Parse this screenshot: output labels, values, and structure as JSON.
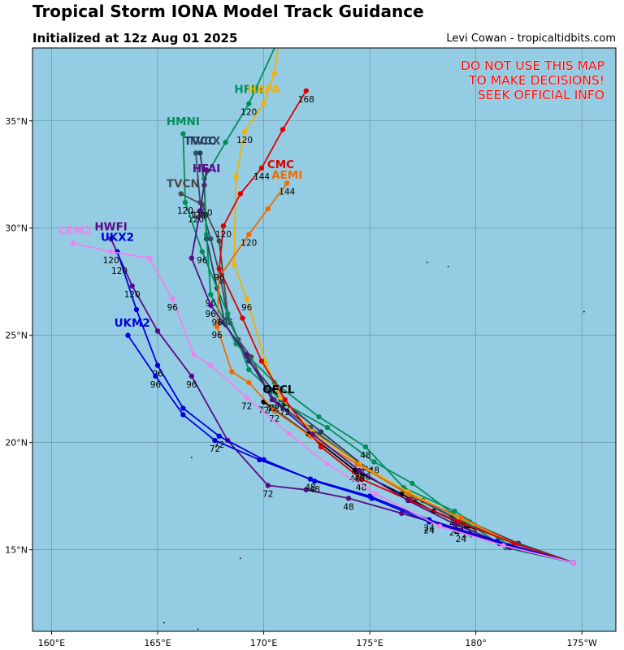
{
  "header": {
    "title": "Tropical Storm IONA Model Track Guidance",
    "subtitle": "Initialized at 12z Aug 01 2025",
    "credit": "Levi Cowan - tropicaltidbits.com"
  },
  "warning": [
    "DO NOT USE THIS MAP",
    "TO MAKE DECISIONS!",
    "SEEK OFFICIAL INFO"
  ],
  "axes": {
    "lon_ticks": [
      {
        "lon": 160,
        "label": "160°E"
      },
      {
        "lon": 165,
        "label": "165°E"
      },
      {
        "lon": 170,
        "label": "170°E"
      },
      {
        "lon": 175,
        "label": "175°E"
      },
      {
        "lon": 180,
        "label": "180°"
      },
      {
        "lon": 185,
        "label": "175°W"
      }
    ],
    "lat_ticks": [
      {
        "lat": 15,
        "label": "15°N"
      },
      {
        "lat": 20,
        "label": "20°N"
      },
      {
        "lat": 25,
        "label": "25°N"
      },
      {
        "lat": 30,
        "label": "30°N"
      },
      {
        "lat": 35,
        "label": "35°N"
      }
    ],
    "lon_range": [
      159.1,
      186.6
    ],
    "lat_range": [
      11.2,
      38.4
    ]
  },
  "colors": {
    "ocean": "#94cde3",
    "grid": "#4f6f7a",
    "warning": "#ff0000"
  },
  "tracks": [
    {
      "name": "OFCL",
      "color": "#000000",
      "label": "OFCL",
      "label_at": [
        170.7,
        22.3
      ],
      "points": [
        [
          184.6,
          14.4
        ],
        [
          182,
          15.3
        ],
        [
          179.6,
          16.1
        ],
        [
          178,
          16.8
        ],
        [
          176.5,
          17.6
        ],
        [
          174.3,
          18.7
        ],
        [
          172.1,
          20.4
        ],
        [
          170,
          21.9
        ]
      ],
      "tau_labels": [
        [
          "24",
          179.6,
          16.1
        ],
        [
          "48",
          174.3,
          18.7
        ],
        [
          "72",
          170,
          21.9
        ]
      ]
    },
    {
      "name": "TVCN",
      "color": "#4a4a4a",
      "label": "TVCN",
      "label_at": [
        166.2,
        31.9
      ],
      "points": [
        [
          184.6,
          14.4
        ],
        [
          182,
          15.3
        ],
        [
          179.5,
          16.2
        ],
        [
          177,
          17.5
        ],
        [
          174.5,
          19
        ],
        [
          172.2,
          20.7
        ],
        [
          170.4,
          22
        ],
        [
          169.4,
          24
        ],
        [
          168.8,
          24.8
        ],
        [
          168.3,
          26
        ],
        [
          167.9,
          29.4
        ],
        [
          167.1,
          31.1
        ],
        [
          166.1,
          31.6
        ]
      ],
      "tau_labels": [
        [
          "24",
          179.6,
          16.1
        ],
        [
          "48",
          174.6,
          18.3
        ],
        [
          "72",
          170.4,
          21.9
        ],
        [
          "96",
          168.3,
          26
        ],
        [
          "120",
          167.2,
          31.1
        ]
      ]
    },
    {
      "name": "TVCX",
      "color": "#374e6b",
      "label": "TVCX",
      "label_at": [
        167.2,
        33.9
      ],
      "points": [
        [
          184.6,
          14.4
        ],
        [
          182,
          15.3
        ],
        [
          179.6,
          16.2
        ],
        [
          177.2,
          17.4
        ],
        [
          174.8,
          18.8
        ],
        [
          172.5,
          20.4
        ],
        [
          170.5,
          22
        ],
        [
          169.2,
          24
        ],
        [
          168.3,
          25.8
        ],
        [
          168,
          27.5
        ],
        [
          167.5,
          29.5
        ],
        [
          167,
          31.2
        ],
        [
          166.8,
          33.5
        ]
      ],
      "tau_labels": [
        [
          "24",
          179.8,
          16.3
        ],
        [
          "48",
          174.8,
          18.8
        ],
        [
          "72",
          170.5,
          22
        ],
        [
          "96",
          168,
          26
        ],
        [
          "120",
          166.8,
          30.8
        ]
      ]
    },
    {
      "name": "TVCC",
      "color": "#2a3a5a",
      "label": "TVCC",
      "label_at": [
        167,
        33.9
      ],
      "points": [
        [
          184.6,
          14.4
        ],
        [
          182,
          15.3
        ],
        [
          179.7,
          16.3
        ],
        [
          177.5,
          17.3
        ],
        [
          175,
          18.7
        ],
        [
          172.7,
          20.5
        ],
        [
          170.8,
          22
        ],
        [
          169.3,
          23.8
        ],
        [
          168.2,
          25.5
        ],
        [
          167.8,
          27.2
        ],
        [
          167.3,
          29.5
        ],
        [
          167.2,
          32
        ],
        [
          167,
          33.5
        ]
      ],
      "tau_labels": [
        [
          "96",
          167.8,
          26
        ],
        [
          "120",
          167,
          31
        ]
      ]
    },
    {
      "name": "HMNI",
      "color": "#008f5a",
      "label": "HMNI",
      "label_at": [
        166.2,
        34.8
      ],
      "points": [
        [
          184.6,
          14.4
        ],
        [
          181.4,
          15.1
        ],
        [
          178.9,
          16.7
        ],
        [
          177,
          18.1
        ],
        [
          175.2,
          19.1
        ],
        [
          173,
          20.7
        ],
        [
          171,
          21.8
        ],
        [
          169.3,
          23.4
        ],
        [
          168.3,
          26
        ],
        [
          167.1,
          28.9
        ],
        [
          166.3,
          31.2
        ],
        [
          166.2,
          34.4
        ]
      ],
      "tau_labels": [
        [
          "24",
          179,
          16.7
        ],
        [
          "48",
          175.2,
          19.1
        ],
        [
          "72",
          171,
          21.8
        ],
        [
          "96",
          167.1,
          28.9
        ],
        [
          "120",
          166.3,
          31.2
        ]
      ]
    },
    {
      "name": "HFBI",
      "color": "#008f5a",
      "label": "HFBI",
      "label_at": [
        169.3,
        36.3
      ],
      "points": [
        [
          184.6,
          14.4
        ],
        [
          181.6,
          15.2
        ],
        [
          179,
          16.8
        ],
        [
          176.6,
          17.9
        ],
        [
          174.8,
          19.8
        ],
        [
          172.6,
          21.2
        ],
        [
          170.5,
          22.8
        ],
        [
          168.7,
          24.6
        ],
        [
          167.5,
          26.9
        ],
        [
          167.3,
          29.7
        ],
        [
          167.2,
          32.3
        ],
        [
          168.2,
          34
        ],
        [
          169.3,
          35.8
        ],
        [
          170.6,
          38.6
        ]
      ],
      "tau_labels": [
        [
          "24",
          179,
          16.8
        ],
        [
          "48",
          174.8,
          19.8
        ],
        [
          "72",
          170.5,
          22.8
        ],
        [
          "96",
          167.5,
          26.9
        ],
        [
          "120",
          169.3,
          35.8
        ]
      ]
    },
    {
      "name": "HAFA",
      "color": "#f5b000",
      "label": "HAFA",
      "label_at": [
        170,
        36.3
      ],
      "points": [
        [
          184.6,
          14.4
        ],
        [
          181.8,
          15.3
        ],
        [
          179.2,
          16.5
        ],
        [
          176.8,
          17.7
        ],
        [
          174.5,
          19
        ],
        [
          172.3,
          20.5
        ],
        [
          170.8,
          22.1
        ],
        [
          170.1,
          23.7
        ],
        [
          169.2,
          26.7
        ],
        [
          168.6,
          28.3
        ],
        [
          168.7,
          32.4
        ],
        [
          169.1,
          34.5
        ],
        [
          170,
          35.8
        ],
        [
          170.5,
          37.2
        ],
        [
          170.7,
          38.6
        ]
      ],
      "tau_labels": [
        [
          "24",
          179.2,
          16.5
        ],
        [
          "48",
          174.5,
          19
        ],
        [
          "72",
          170.8,
          22.1
        ],
        [
          "96",
          169.2,
          26.7
        ],
        [
          "120",
          169.1,
          34.5
        ]
      ]
    },
    {
      "name": "AEMI",
      "color": "#ef6c00",
      "label": "AEMI",
      "label_at": [
        171.1,
        32.3
      ],
      "points": [
        [
          184.6,
          14.4
        ],
        [
          181.8,
          15.3
        ],
        [
          179.3,
          16.5
        ],
        [
          176.8,
          17.6
        ],
        [
          174.4,
          19
        ],
        [
          172.2,
          20.3
        ],
        [
          170.5,
          21.5
        ],
        [
          169.3,
          22.8
        ],
        [
          168.5,
          23.3
        ],
        [
          167.8,
          25.4
        ],
        [
          167.9,
          27.7
        ],
        [
          169.3,
          29.7
        ],
        [
          170.2,
          30.9
        ],
        [
          171.1,
          32.1
        ]
      ],
      "tau_labels": [
        [
          "24",
          179.3,
          16.5
        ],
        [
          "48",
          174.4,
          19
        ],
        [
          "72",
          170.5,
          21.5
        ],
        [
          "96",
          167.8,
          25.4
        ],
        [
          "120",
          169.3,
          29.7
        ],
        [
          "144",
          171.1,
          32.1
        ]
      ]
    },
    {
      "name": "CMC",
      "color": "#dd0000",
      "label": "CMC",
      "label_at": [
        170.8,
        32.8
      ],
      "points": [
        [
          184.6,
          14.4
        ],
        [
          181.8,
          15.3
        ],
        [
          179.2,
          16.3
        ],
        [
          176.9,
          17.3
        ],
        [
          174.6,
          18.3
        ],
        [
          172.7,
          19.8
        ],
        [
          171,
          22
        ],
        [
          169.9,
          23.8
        ],
        [
          169,
          25.8
        ],
        [
          167.9,
          28.1
        ],
        [
          168.1,
          30.1
        ],
        [
          168.9,
          31.6
        ],
        [
          169.9,
          32.8
        ],
        [
          170.9,
          34.6
        ],
        [
          172,
          36.4
        ]
      ],
      "tau_labels": [
        [
          "24",
          179.2,
          16.3
        ],
        [
          "48",
          174.6,
          18.3
        ],
        [
          "72",
          171,
          22
        ],
        [
          "96",
          167.9,
          28.1
        ],
        [
          "120",
          168.1,
          30.1
        ],
        [
          "144",
          169.9,
          32.8
        ],
        [
          "168",
          172,
          36.4
        ]
      ]
    },
    {
      "name": "HWFI",
      "color": "#5a0a86",
      "label": "HWFI",
      "label_at": [
        162.8,
        29.9
      ],
      "points": [
        [
          184.6,
          14.4
        ],
        [
          181.6,
          15.1
        ],
        [
          179.3,
          15.9
        ],
        [
          176.5,
          16.7
        ],
        [
          174,
          17.4
        ],
        [
          172,
          17.8
        ],
        [
          170.2,
          18
        ],
        [
          168.3,
          20.1
        ],
        [
          166.6,
          23.1
        ],
        [
          165,
          25.2
        ],
        [
          163.8,
          27.3
        ],
        [
          162.8,
          29.5
        ]
      ],
      "tau_labels": [
        [
          "24",
          179.3,
          15.9
        ],
        [
          "48",
          174,
          17.4
        ],
        [
          "72",
          170.2,
          18
        ],
        [
          "96",
          166.6,
          23.1
        ],
        [
          "120",
          163.8,
          27.3
        ]
      ]
    },
    {
      "name": "HFAI",
      "color": "#5a0a86",
      "label": "HFAI",
      "label_at": [
        167.3,
        32.6
      ],
      "points": [
        [
          184.6,
          14.4
        ],
        [
          181.5,
          15.2
        ],
        [
          179,
          16.2
        ],
        [
          176.8,
          17.3
        ],
        [
          174.5,
          18.7
        ],
        [
          172.3,
          20.4
        ],
        [
          170.4,
          22
        ],
        [
          169.2,
          24.1
        ],
        [
          167.5,
          26.4
        ],
        [
          166.6,
          28.6
        ],
        [
          167,
          30.8
        ],
        [
          167.3,
          32.7
        ]
      ],
      "tau_labels": [
        [
          "24",
          179,
          16.2
        ],
        [
          "48",
          174.5,
          18.7
        ],
        [
          "72",
          170.4,
          22
        ],
        [
          "96",
          167.5,
          26.4
        ],
        [
          "120",
          166.9,
          31
        ]
      ]
    },
    {
      "name": "UKX2",
      "color": "#0000dd",
      "label": "UKX2",
      "label_at": [
        163.1,
        29.4
      ],
      "points": [
        [
          184.6,
          14.4
        ],
        [
          181.1,
          15.3
        ],
        [
          177.8,
          16.3
        ],
        [
          175.1,
          17.4
        ],
        [
          172.4,
          18.2
        ],
        [
          170,
          19.2
        ],
        [
          167.9,
          20.3
        ],
        [
          166.2,
          21.6
        ],
        [
          165,
          23.6
        ],
        [
          164,
          26.2
        ],
        [
          163.1,
          28.9
        ]
      ],
      "tau_labels": [
        [
          "24",
          177.8,
          16.3
        ],
        [
          "48",
          172.4,
          18.2
        ],
        [
          "72",
          167.9,
          20.3
        ],
        [
          "96",
          165,
          23.6
        ],
        [
          "120",
          163.2,
          28.4
        ]
      ]
    },
    {
      "name": "UKM2",
      "color": "#0000dd",
      "label": "UKM2",
      "label_at": [
        163.8,
        25.4
      ],
      "points": [
        [
          184.6,
          14.4
        ],
        [
          181,
          15.4
        ],
        [
          177.8,
          16.4
        ],
        [
          175,
          17.5
        ],
        [
          172.2,
          18.3
        ],
        [
          169.8,
          19.2
        ],
        [
          167.7,
          20.1
        ],
        [
          166.2,
          21.3
        ],
        [
          164.9,
          23.1
        ],
        [
          163.6,
          25
        ]
      ],
      "tau_labels": [
        [
          "24",
          177.8,
          16.4
        ],
        [
          "48",
          172.2,
          18.3
        ],
        [
          "72",
          167.7,
          20.1
        ],
        [
          "96",
          164.9,
          23.1
        ]
      ]
    },
    {
      "name": "CEM2",
      "color": "#ee82ee",
      "label": "CEM2",
      "label_at": [
        161.1,
        29.7
      ],
      "points": [
        [
          184.6,
          14.4
        ],
        [
          181.3,
          15.2
        ],
        [
          178.3,
          16.1
        ],
        [
          175.3,
          17.6
        ],
        [
          173,
          19
        ],
        [
          171.2,
          20.4
        ],
        [
          169.2,
          22.1
        ],
        [
          167.5,
          23.6
        ],
        [
          166.7,
          24.1
        ],
        [
          165.7,
          26.7
        ],
        [
          164.6,
          28.6
        ],
        [
          162.8,
          28.9
        ],
        [
          161,
          29.3
        ]
      ],
      "tau_labels": [
        [
          "72",
          169.2,
          22.1
        ],
        [
          "96",
          165.7,
          26.7
        ],
        [
          "120",
          162.8,
          28.9
        ]
      ]
    }
  ],
  "island_dots": [
    [
      166.6,
      19.3
    ],
    [
      168.9,
      14.6
    ],
    [
      165.3,
      11.6
    ],
    [
      166.9,
      11.3
    ],
    [
      177.7,
      28.4
    ],
    [
      178.7,
      28.2
    ],
    [
      185.1,
      26.1
    ]
  ]
}
